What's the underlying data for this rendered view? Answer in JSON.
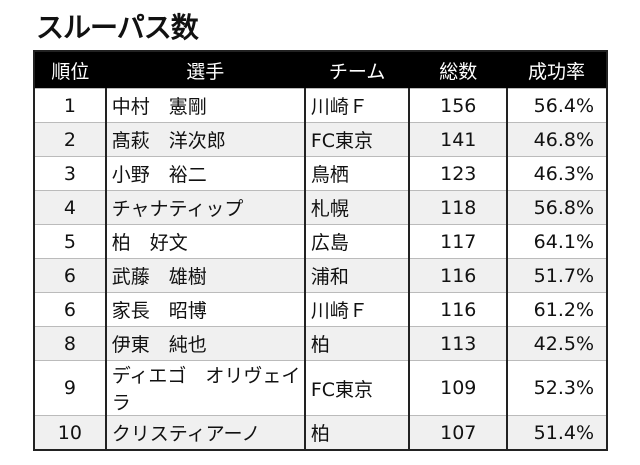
{
  "title": "スルーパス数",
  "headers": [
    "順位",
    "選手",
    "チーム",
    "総数",
    "成功率"
  ],
  "rows": [
    {
      "rank": "1",
      "player": "中村　憲剛",
      "team": "川崎Ｆ",
      "total": "156",
      "rate": "56.4%"
    },
    {
      "rank": "2",
      "player": "髙萩　洋次郎",
      "team": "FC東京",
      "total": "141",
      "rate": "46.8%"
    },
    {
      "rank": "3",
      "player": "小野　裕二",
      "team": "鳥栖",
      "total": "123",
      "rate": "46.3%"
    },
    {
      "rank": "4",
      "player": "チャナティップ",
      "team": "札幌",
      "total": "118",
      "rate": "56.8%"
    },
    {
      "rank": "5",
      "player": "柏　好文",
      "team": "広島",
      "total": "117",
      "rate": "64.1%"
    },
    {
      "rank": "6",
      "player": "武藤　雄樹",
      "team": "浦和",
      "total": "116",
      "rate": "51.7%"
    },
    {
      "rank": "6",
      "player": "家長　昭博",
      "team": "川崎Ｆ",
      "total": "116",
      "rate": "61.2%"
    },
    {
      "rank": "8",
      "player": "伊東　純也",
      "team": "柏",
      "total": "113",
      "rate": "42.5%"
    },
    {
      "rank": "9",
      "player": "ディエゴ　オリヴェイラ",
      "team": "FC東京",
      "total": "109",
      "rate": "52.3%"
    },
    {
      "rank": "10",
      "player": "クリスティアーノ",
      "team": "柏",
      "total": "107",
      "rate": "51.4%"
    }
  ]
}
